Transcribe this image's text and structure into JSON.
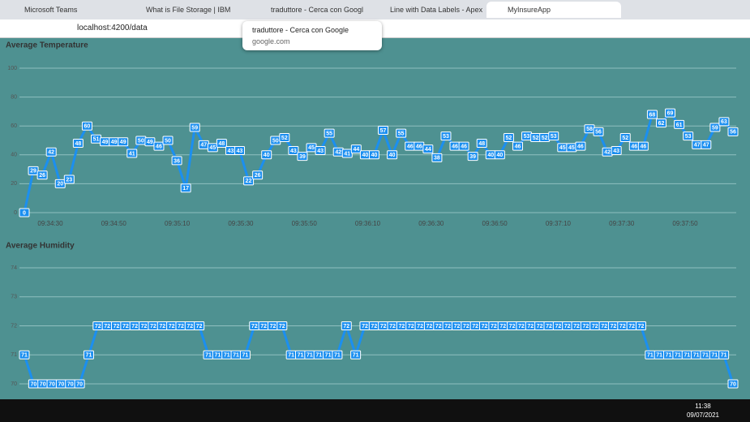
{
  "browser": {
    "tabs": [
      "Microsoft Teams",
      "What is File Storage | IBM",
      "traduttore - Cerca con Googl",
      "Line with Data Labels - Apex",
      "MyInsureApp"
    ],
    "url": "localhost:4200/data",
    "tooltip": {
      "title": "traduttore - Cerca con Google",
      "host": "google.com"
    }
  },
  "taskbar": {
    "time": "11:38",
    "date": "09/07/2021"
  },
  "chart_data": [
    {
      "type": "line",
      "title": "Average Temperature",
      "color": "#1b8ff0",
      "values": [
        0,
        29,
        26,
        42,
        20,
        23,
        48,
        60,
        51,
        49,
        49,
        49,
        41,
        50,
        49,
        46,
        50,
        36,
        17,
        59,
        47,
        45,
        48,
        43,
        43,
        22,
        26,
        40,
        50,
        52,
        43,
        39,
        45,
        43,
        55,
        42,
        41,
        44,
        40,
        40,
        57,
        40,
        55,
        46,
        46,
        44,
        38,
        53,
        46,
        46,
        39,
        48,
        40,
        40,
        52,
        46,
        53,
        52,
        52,
        53,
        45,
        45,
        46,
        58,
        56,
        42,
        43,
        52,
        46,
        46,
        68,
        62,
        69,
        61,
        53,
        47,
        47,
        59,
        63,
        56
      ],
      "ylim": [
        0,
        100
      ],
      "yticks": [
        0,
        20,
        40,
        60,
        80,
        100
      ],
      "xticks": [
        "09:34:30",
        "09:34:50",
        "09:35:10",
        "09:35:30",
        "09:35:50",
        "09:36:10",
        "09:36:30",
        "09:36:50",
        "09:37:10",
        "09:37:30",
        "09:37:50"
      ],
      "grid": true
    },
    {
      "type": "line",
      "title": "Average Humidity",
      "color": "#1b8ff0",
      "values": [
        71,
        70,
        70,
        70,
        70,
        70,
        70,
        71,
        72,
        72,
        72,
        72,
        72,
        72,
        72,
        72,
        72,
        72,
        72,
        72,
        71,
        71,
        71,
        71,
        71,
        72,
        72,
        72,
        72,
        71,
        71,
        71,
        71,
        71,
        71,
        72,
        71,
        72,
        72,
        72,
        72,
        72,
        72,
        72,
        72,
        72,
        72,
        72,
        72,
        72,
        72,
        72,
        72,
        72,
        72,
        72,
        72,
        72,
        72,
        72,
        72,
        72,
        72,
        72,
        72,
        72,
        72,
        72,
        71,
        71,
        71,
        71,
        71,
        71,
        71,
        71,
        71,
        70
      ],
      "ylim": [
        70,
        74
      ],
      "yticks": [
        70,
        71,
        72,
        73,
        74
      ],
      "grid": true
    }
  ]
}
